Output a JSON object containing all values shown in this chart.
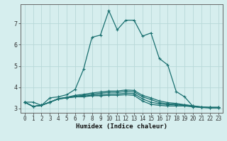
{
  "xlabel": "Humidex (Indice chaleur)",
  "background_color": "#d6eeee",
  "grid_color": "#b8d8d8",
  "line_color": "#1a7070",
  "xlim": [
    -0.5,
    23.5
  ],
  "ylim": [
    2.8,
    7.9
  ],
  "yticks": [
    3,
    4,
    5,
    6,
    7
  ],
  "xticks": [
    0,
    1,
    2,
    3,
    4,
    5,
    6,
    7,
    8,
    9,
    10,
    11,
    12,
    13,
    14,
    15,
    16,
    17,
    18,
    19,
    20,
    21,
    22,
    23
  ],
  "curves": [
    [
      3.3,
      3.3,
      3.15,
      3.5,
      3.55,
      3.65,
      3.9,
      4.85,
      6.35,
      6.45,
      7.6,
      6.7,
      7.15,
      7.15,
      6.4,
      6.55,
      5.35,
      5.05,
      3.8,
      3.55,
      3.1,
      3.05,
      3.05,
      3.05
    ],
    [
      3.3,
      3.1,
      3.15,
      3.3,
      3.45,
      3.5,
      3.55,
      3.55,
      3.6,
      3.6,
      3.62,
      3.62,
      3.65,
      3.62,
      3.35,
      3.2,
      3.15,
      3.12,
      3.12,
      3.12,
      3.08,
      3.05,
      3.03,
      3.03
    ],
    [
      3.3,
      3.1,
      3.15,
      3.3,
      3.45,
      3.5,
      3.55,
      3.58,
      3.62,
      3.65,
      3.68,
      3.68,
      3.72,
      3.7,
      3.45,
      3.3,
      3.22,
      3.18,
      3.17,
      3.15,
      3.1,
      3.06,
      3.04,
      3.04
    ],
    [
      3.3,
      3.1,
      3.15,
      3.3,
      3.45,
      3.52,
      3.58,
      3.62,
      3.67,
      3.72,
      3.76,
      3.76,
      3.8,
      3.78,
      3.55,
      3.42,
      3.28,
      3.22,
      3.2,
      3.17,
      3.12,
      3.07,
      3.05,
      3.05
    ],
    [
      3.3,
      3.1,
      3.15,
      3.3,
      3.47,
      3.53,
      3.62,
      3.67,
      3.73,
      3.78,
      3.82,
      3.82,
      3.87,
      3.85,
      3.62,
      3.5,
      3.36,
      3.28,
      3.24,
      3.18,
      3.13,
      3.08,
      3.06,
      3.06
    ]
  ],
  "marker": "+",
  "markersize": 3.5,
  "linewidth": 0.9,
  "tick_fontsize": 5.5,
  "xlabel_fontsize": 6.5
}
